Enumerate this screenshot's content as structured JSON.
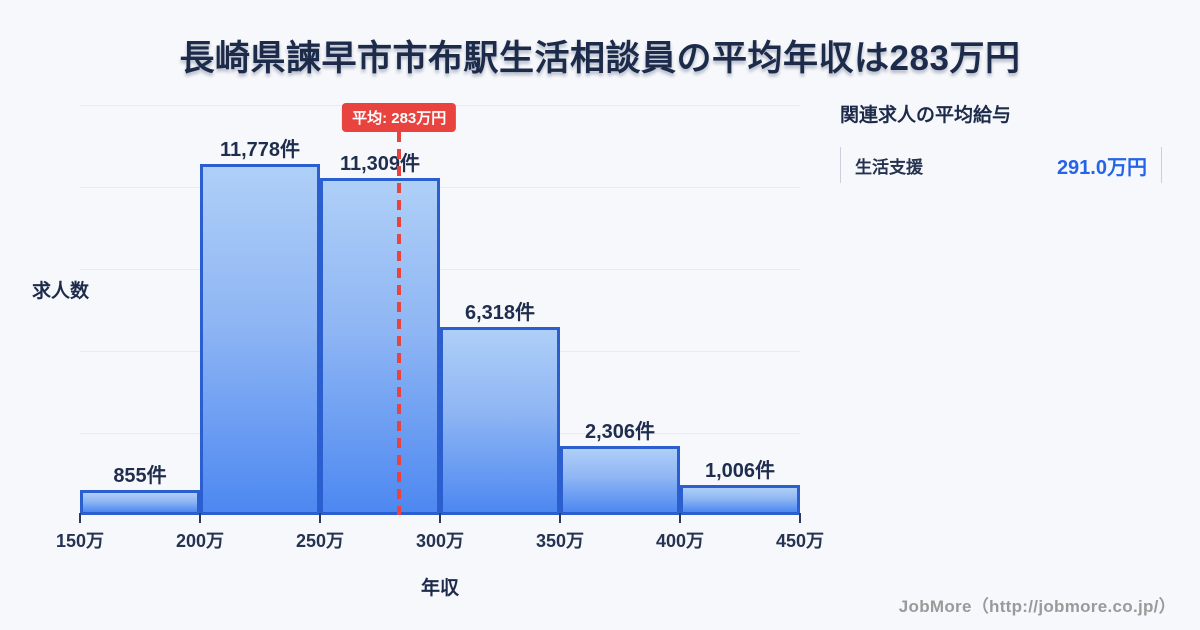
{
  "title": "長崎県諫早市市布駅生活相談員の平均年収は283万円",
  "chart_data": {
    "type": "bar",
    "title": "長崎県諫早市市布駅生活相談員の平均年収は283万円",
    "xlabel": "年収",
    "ylabel": "求人数",
    "x_tick_labels": [
      "150万",
      "200万",
      "250万",
      "300万",
      "350万",
      "400万",
      "450万"
    ],
    "x_range": [
      150,
      450
    ],
    "ylim": [
      0,
      13750
    ],
    "gridline_step": 2750,
    "grid": true,
    "bins": [
      {
        "range": "150万-200万",
        "count": 855,
        "label": "855件"
      },
      {
        "range": "200万-250万",
        "count": 11778,
        "label": "11,778件"
      },
      {
        "range": "250万-300万",
        "count": 11309,
        "label": "11,309件"
      },
      {
        "range": "300万-350万",
        "count": 6318,
        "label": "6,318件"
      },
      {
        "range": "350万-400万",
        "count": 2306,
        "label": "2,306件"
      },
      {
        "range": "400万-450万",
        "count": 1006,
        "label": "1,006件"
      }
    ],
    "average": {
      "value": 283,
      "label": "平均: 283万円"
    }
  },
  "side_panel": {
    "title": "関連求人の平均給与",
    "rows": [
      {
        "label": "生活支援",
        "value": "291.0万円"
      }
    ]
  },
  "footer": {
    "credit": "JobMore（http://jobmore.co.jp/）"
  },
  "colors": {
    "background": "#f7f8fb",
    "text_dark": "#1d2b4b",
    "bar_border": "#2b5fd0",
    "bar_fill_top": "#aecff7",
    "bar_fill_bottom": "#4d88f1",
    "gridline": "#e7ebf2",
    "tick": "#2d3b5e",
    "average_red": "#e8433e",
    "value_blue": "#2563eb",
    "panel_border": "#c9d0dc",
    "footer_gray": "#9a9a9a"
  }
}
